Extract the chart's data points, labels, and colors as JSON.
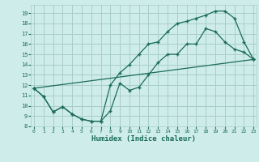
{
  "bg_color": "#ceecea",
  "grid_color": "#a8ceca",
  "line_color": "#1a6b5a",
  "xlim": [
    -0.3,
    23.3
  ],
  "ylim": [
    8,
    19.8
  ],
  "xticks": [
    0,
    1,
    2,
    3,
    4,
    5,
    6,
    7,
    8,
    9,
    10,
    11,
    12,
    13,
    14,
    15,
    16,
    17,
    18,
    19,
    20,
    21,
    22,
    23
  ],
  "yticks": [
    8,
    9,
    10,
    11,
    12,
    13,
    14,
    15,
    16,
    17,
    18,
    19
  ],
  "xlabel": "Humidex (Indice chaleur)",
  "curve1_x": [
    0,
    1,
    2,
    3,
    4,
    5,
    6,
    7,
    8,
    9,
    10,
    11,
    12,
    13,
    14,
    15,
    16,
    17,
    18,
    19,
    20,
    21,
    22,
    23
  ],
  "curve1_y": [
    11.7,
    10.9,
    9.4,
    9.9,
    9.2,
    8.7,
    8.5,
    8.5,
    9.5,
    12.2,
    11.5,
    11.8,
    13.0,
    14.2,
    15.0,
    15.0,
    16.0,
    16.0,
    17.5,
    17.2,
    16.2,
    15.5,
    15.2,
    14.5
  ],
  "curve2_x": [
    0,
    1,
    2,
    3,
    4,
    5,
    6,
    7,
    8,
    9,
    10,
    11,
    12,
    13,
    14,
    15,
    16,
    17,
    18,
    19,
    20,
    21,
    22,
    23
  ],
  "curve2_y": [
    11.7,
    10.9,
    9.4,
    9.9,
    9.2,
    8.7,
    8.5,
    8.5,
    12.0,
    13.2,
    14.0,
    15.0,
    16.0,
    16.2,
    17.2,
    18.0,
    18.2,
    18.5,
    18.8,
    19.2,
    19.2,
    18.5,
    16.2,
    14.5
  ],
  "line3_x": [
    0,
    23
  ],
  "line3_y": [
    11.7,
    14.5
  ]
}
